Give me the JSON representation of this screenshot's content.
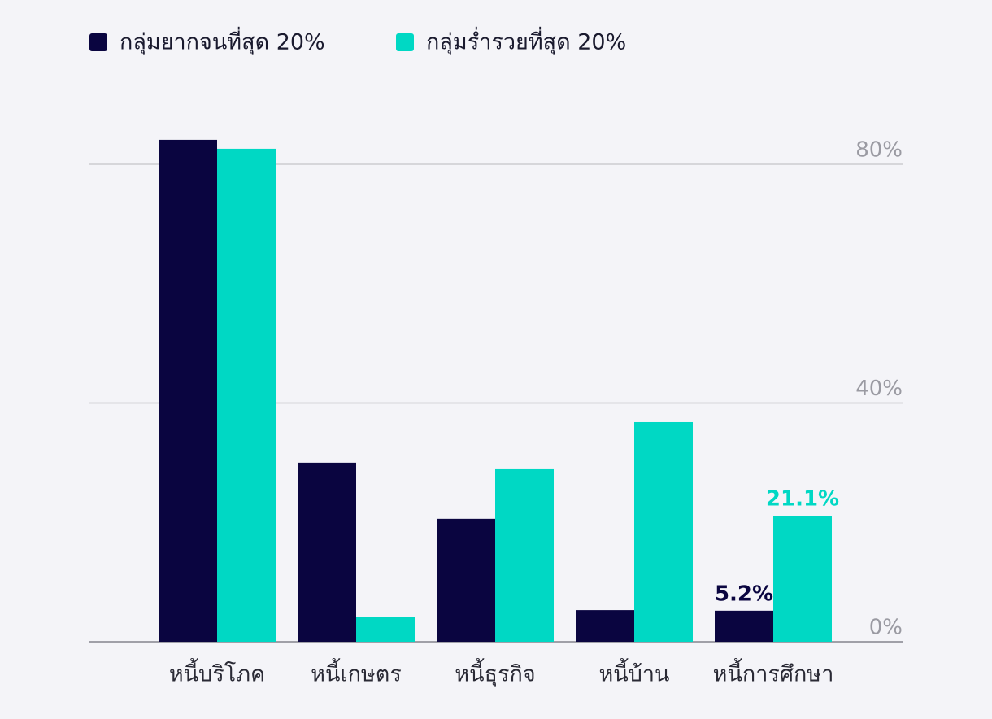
{
  "chart_data": {
    "type": "bar",
    "categories": [
      "หนี้บริโภค",
      "หนี้เกษตร",
      "หนี้ธุรกิจ",
      "หนี้บ้าน",
      "หนี้การศึกษา"
    ],
    "series": [
      {
        "name": "กลุ่มยากจนที่สุด 20%",
        "color": "#0a0540",
        "values": [
          84.1,
          30.0,
          20.6,
          5.3,
          5.2
        ],
        "value_labels": [
          null,
          null,
          null,
          null,
          "5.2%"
        ]
      },
      {
        "name": "กลุ่มร่ำรวยที่สุด 20%",
        "color": "#00d8c4",
        "values": [
          82.6,
          4.2,
          28.9,
          36.8,
          21.1
        ],
        "value_labels": [
          null,
          null,
          null,
          null,
          "21.1%"
        ]
      }
    ],
    "ylim": [
      0,
      80
    ],
    "yticks": [
      {
        "value": 0,
        "label": "0%"
      },
      {
        "value": 40,
        "label": "40%"
      },
      {
        "value": 80,
        "label": "80%"
      }
    ],
    "grid": true,
    "y_axis_side": "right",
    "legend": "top-left"
  }
}
